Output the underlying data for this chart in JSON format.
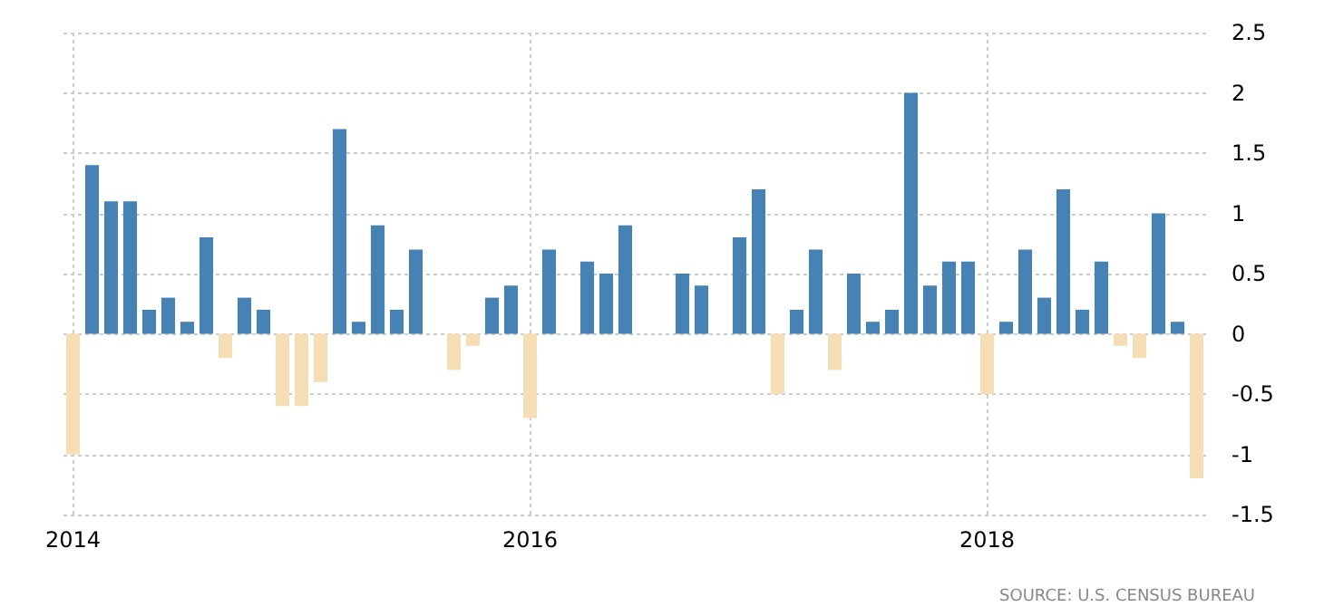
{
  "chart_data": {
    "type": "bar",
    "categories": [
      "2014",
      null,
      null,
      null,
      null,
      null,
      null,
      null,
      null,
      null,
      null,
      null,
      null,
      null,
      null,
      null,
      null,
      null,
      null,
      null,
      null,
      null,
      null,
      null,
      "2016",
      null,
      null,
      null,
      null,
      null,
      null,
      null,
      null,
      null,
      null,
      null,
      null,
      null,
      null,
      null,
      null,
      null,
      null,
      null,
      null,
      null,
      null,
      null,
      "2018",
      null,
      null,
      null,
      null,
      null,
      null,
      null,
      null,
      null,
      null,
      null
    ],
    "values": [
      -1.0,
      1.4,
      1.1,
      1.1,
      0.2,
      0.3,
      0.1,
      0.8,
      -0.2,
      0.3,
      0.2,
      -0.6,
      -0.6,
      -0.4,
      1.7,
      0.1,
      0.9,
      0.2,
      0.7,
      0,
      -0.3,
      -0.1,
      0.3,
      0.4,
      -0.7,
      0.7,
      0,
      0.6,
      0.5,
      0.9,
      0,
      0,
      0.5,
      0.4,
      0,
      0.8,
      1.2,
      -0.5,
      0.2,
      0.7,
      -0.3,
      0.5,
      0.1,
      0.2,
      2.0,
      0.4,
      0.6,
      0.6,
      -0.5,
      0.1,
      0.7,
      0.3,
      1.2,
      0.2,
      0.6,
      -0.1,
      -0.2,
      1.0,
      0.1,
      -1.2
    ],
    "colors": [
      "#f5deb3",
      "#4682b4",
      "#4682b4",
      "#4682b4",
      "#4682b4",
      "#4682b4",
      "#4682b4",
      "#4682b4",
      "#f5deb3",
      "#4682b4",
      "#4682b4",
      "#f5deb3",
      "#f5deb3",
      "#f5deb3",
      "#4682b4",
      "#4682b4",
      "#4682b4",
      "#4682b4",
      "#4682b4",
      "#4682b4",
      "#f5deb3",
      "#f5deb3",
      "#4682b4",
      "#4682b4",
      "#f5deb3",
      "#4682b4",
      "#4682b4",
      "#4682b4",
      "#4682b4",
      "#4682b4",
      "#4682b4",
      "#4682b4",
      "#4682b4",
      "#4682b4",
      "#4682b4",
      "#4682b4",
      "#4682b4",
      "#f5deb3",
      "#4682b4",
      "#4682b4",
      "#f5deb3",
      "#4682b4",
      "#4682b4",
      "#4682b4",
      "#4682b4",
      "#4682b4",
      "#4682b4",
      "#4682b4",
      "#f5deb3",
      "#4682b4",
      "#4682b4",
      "#4682b4",
      "#4682b4",
      "#4682b4",
      "#4682b4",
      "#f5deb3",
      "#f5deb3",
      "#4682b4",
      "#4682b4",
      "#f5deb3"
    ],
    "ylim": [
      -1.5,
      2.5
    ],
    "yticks": [
      -1.5,
      -1,
      -0.5,
      0,
      0.5,
      1,
      1.5,
      2,
      2.5
    ],
    "grid": true,
    "annotations": [
      "SOURCE: U.S. CENSUS BUREAU"
    ]
  }
}
